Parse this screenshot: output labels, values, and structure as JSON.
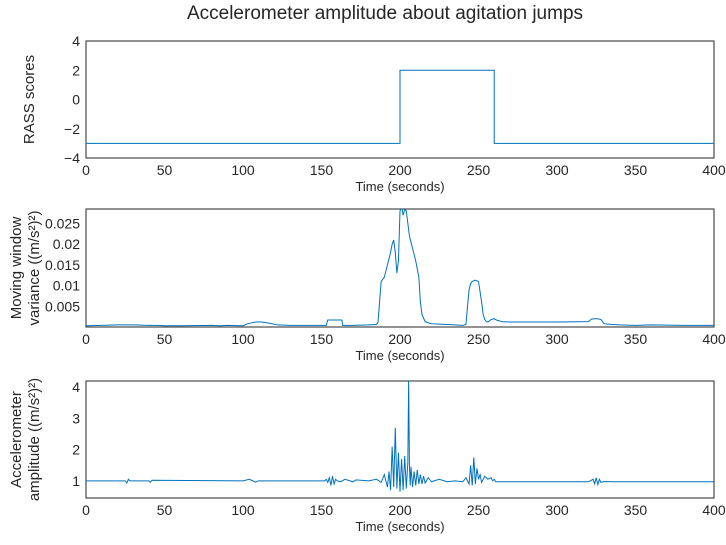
{
  "figure": {
    "title": "Accelerometer amplitude about agitation jumps",
    "line_color": "#0072bd",
    "axis_color": "#262626",
    "background": "#ffffff"
  },
  "chart_data": [
    {
      "type": "line",
      "xlabel": "Time (seconds)",
      "ylabel_lines": [
        "RASS scores"
      ],
      "xlim": [
        0,
        400
      ],
      "ylim": [
        -4,
        4
      ],
      "xticks": [
        0,
        50,
        100,
        150,
        200,
        250,
        300,
        350,
        400
      ],
      "yticks": [
        -4,
        -2,
        0,
        2,
        4
      ],
      "ytick_labels": [
        "−4",
        "−2",
        "0",
        "2",
        "4"
      ],
      "grid": false,
      "series": [
        {
          "x": [
            0,
            200,
            200,
            260,
            260,
            400
          ],
          "y": [
            -3,
            -3,
            2,
            2,
            -3,
            -3
          ]
        }
      ]
    },
    {
      "type": "line",
      "xlabel": "Time (seconds)",
      "ylabel_lines": [
        "Moving window",
        "variance ((m/s²)²)"
      ],
      "xlim": [
        0,
        400
      ],
      "ylim": [
        0,
        0.0285
      ],
      "xticks": [
        0,
        50,
        100,
        150,
        200,
        250,
        300,
        350,
        400
      ],
      "yticks": [
        0.005,
        0.01,
        0.015,
        0.02,
        0.025
      ],
      "ytick_labels": [
        "0.005",
        "0.01",
        "0.015",
        "0.02",
        "0.025"
      ],
      "grid": false,
      "series": [
        {
          "x": [
            0,
            10,
            20,
            30,
            40,
            45,
            50,
            60,
            80,
            85,
            90,
            100,
            103,
            108,
            112,
            117,
            122,
            130,
            140,
            150,
            153,
            154,
            163,
            163.5,
            170,
            180,
            185,
            186,
            188,
            190,
            192,
            194,
            195,
            196,
            197,
            198,
            199,
            200,
            201,
            202,
            203,
            204,
            205,
            206,
            208,
            210,
            212,
            213,
            214,
            216,
            218,
            220,
            225,
            230,
            235,
            240,
            242,
            243,
            244,
            245,
            246,
            248,
            250,
            251,
            252,
            253,
            254,
            255,
            256,
            258,
            260,
            262,
            265,
            270,
            280,
            300,
            320,
            322,
            324,
            326,
            328,
            330,
            335,
            340,
            350,
            360,
            380,
            400
          ],
          "y": [
            0.0003,
            0.0004,
            0.0005,
            0.0005,
            0.0004,
            0.0004,
            0.0003,
            0.0003,
            0.0004,
            0.0003,
            0.0004,
            0.0003,
            0.0008,
            0.0012,
            0.0012,
            0.0009,
            0.0005,
            0.0004,
            0.0004,
            0.0004,
            0.0004,
            0.0017,
            0.0017,
            0.0004,
            0.0004,
            0.0005,
            0.0006,
            0.0012,
            0.011,
            0.012,
            0.015,
            0.018,
            0.02,
            0.021,
            0.018,
            0.013,
            0.016,
            0.028,
            0.029,
            0.027,
            0.0285,
            0.028,
            0.025,
            0.022,
            0.019,
            0.016,
            0.012,
            0.006,
            0.003,
            0.0013,
            0.001,
            0.0008,
            0.0007,
            0.0006,
            0.0005,
            0.0004,
            0.0006,
            0.005,
            0.009,
            0.0105,
            0.011,
            0.0113,
            0.011,
            0.0085,
            0.006,
            0.003,
            0.0018,
            0.0013,
            0.0012,
            0.0018,
            0.002,
            0.0016,
            0.0013,
            0.0012,
            0.0012,
            0.0012,
            0.0013,
            0.0019,
            0.002,
            0.002,
            0.0018,
            0.0008,
            0.0006,
            0.0005,
            0.0004,
            0.0005,
            0.0004,
            0.0004
          ]
        }
      ]
    },
    {
      "type": "line",
      "xlabel": "Time (seconds)",
      "ylabel_lines": [
        "Accelerometer",
        "amplitude ((m/s²)²)"
      ],
      "xlim": [
        0,
        400
      ],
      "ylim": [
        0.45,
        4.2
      ],
      "xticks": [
        0,
        50,
        100,
        150,
        200,
        250,
        300,
        350,
        400
      ],
      "yticks": [
        1,
        2,
        3,
        4
      ],
      "ytick_labels": [
        "1",
        "2",
        "3",
        "4"
      ],
      "grid": false,
      "series": [
        {
          "x": [
            0,
            25,
            26,
            27,
            28,
            40,
            41,
            42,
            100,
            104,
            108,
            110,
            152,
            153,
            154,
            155,
            156,
            157,
            158,
            159,
            160,
            162,
            165,
            170,
            172,
            180,
            185,
            188,
            190,
            192,
            193,
            194,
            195,
            196,
            197,
            198,
            199,
            200,
            201,
            202,
            203,
            204,
            205,
            205.5,
            206,
            206.5,
            207,
            208,
            209,
            210,
            211,
            212,
            213,
            214,
            215,
            216,
            218,
            220,
            225,
            230,
            235,
            240,
            242,
            244,
            245,
            246,
            247,
            248,
            249,
            250,
            251,
            252,
            254,
            256,
            258,
            259,
            260,
            261,
            262,
            270,
            300,
            320,
            323,
            324,
            325,
            326,
            327,
            328,
            330,
            335,
            350,
            400
          ],
          "y": [
            1.0,
            1.0,
            0.93,
            1.05,
            1.0,
            1.0,
            0.95,
            1.02,
            1.0,
            1.05,
            0.96,
            1.0,
            1.0,
            1.05,
            0.95,
            1.1,
            0.85,
            1.15,
            0.9,
            1.05,
            1.0,
            0.97,
            1.05,
            0.97,
            1.03,
            1.0,
            1.05,
            0.95,
            1.2,
            0.8,
            1.3,
            0.7,
            2.1,
            0.8,
            2.7,
            0.75,
            1.9,
            0.65,
            1.7,
            0.7,
            1.8,
            0.75,
            1.6,
            4.25,
            1.5,
            0.85,
            1.45,
            0.8,
            1.3,
            0.85,
            1.35,
            0.9,
            1.2,
            0.9,
            1.15,
            0.93,
            1.1,
            0.97,
            1.05,
            0.97,
            1.0,
            0.97,
            1.1,
            0.9,
            1.5,
            0.85,
            1.75,
            0.9,
            1.4,
            1.05,
            1.2,
            0.95,
            1.15,
            1.05,
            1.1,
            1.0,
            1.05,
            0.97,
            0.97,
            0.97,
            0.97,
            0.97,
            1.05,
            0.9,
            1.1,
            0.88,
            1.05,
            0.95,
            0.98,
            0.97,
            0.97,
            0.97
          ]
        }
      ]
    }
  ]
}
